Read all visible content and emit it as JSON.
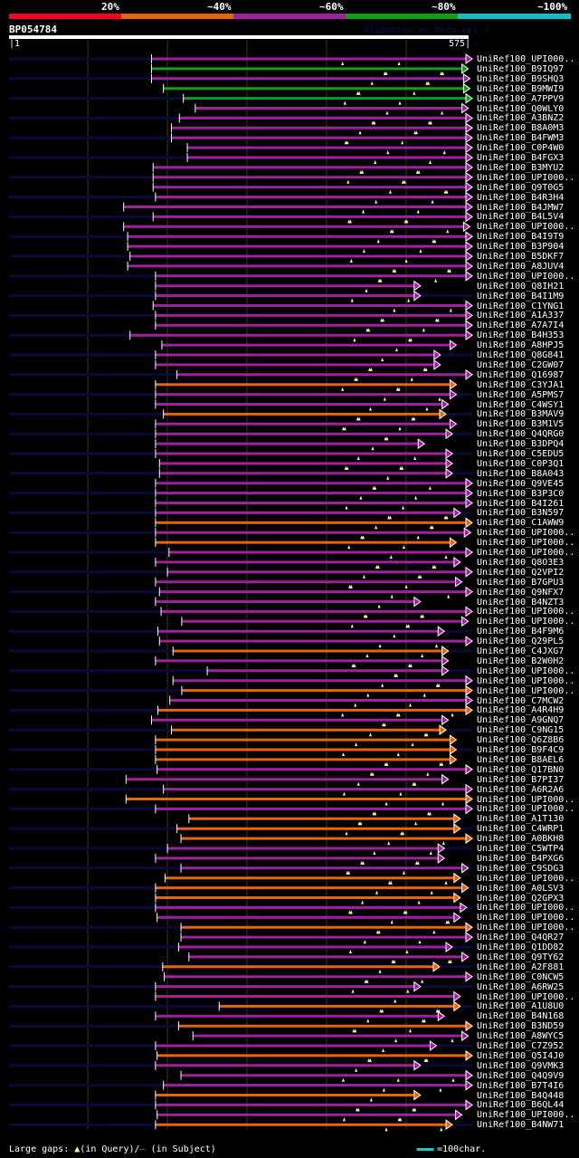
{
  "legend": {
    "labels": [
      "20%",
      "~40%",
      "~60%",
      "~80%",
      "~100%"
    ],
    "colors": [
      "#ff0022",
      "#e8640a",
      "#a020a0",
      "#10a010",
      "#10c0c8"
    ]
  },
  "query": {
    "name": "BP054784",
    "start": "1",
    "end": "575",
    "length": 575
  },
  "version": "AlignView.pm Beta rel.7",
  "colors": {
    "purple": "#a020a0",
    "green": "#10a010",
    "orange": "#e8640a",
    "navy": "#0a0a3a",
    "gap": "#ffffa0",
    "grid": "#3a3a10"
  },
  "hits": [
    {
      "label": "UniRef100_UPI000..",
      "c": "purple",
      "s": 180,
      "e": 575,
      "lead": 1
    },
    {
      "label": "UniRef100_B9IQ97",
      "c": "green",
      "s": 180,
      "e": 570,
      "lead": 0
    },
    {
      "label": "UniRef100_B9SHQ3",
      "c": "purple",
      "s": 180,
      "e": 572,
      "lead": 1
    },
    {
      "label": "UniRef100_B9MWI9",
      "c": "green",
      "s": 195,
      "e": 572,
      "lead": 0
    },
    {
      "label": "UniRef100_A7PPV9",
      "c": "green",
      "s": 220,
      "e": 575,
      "lead": 1
    },
    {
      "label": "UniRef100_Q0WLY0",
      "c": "purple",
      "s": 235,
      "e": 570,
      "lead": 0
    },
    {
      "label": "UniRef100_A3BNZ2",
      "c": "purple",
      "s": 215,
      "e": 575,
      "lead": 1
    },
    {
      "label": "UniRef100_B8A0M3",
      "c": "purple",
      "s": 205,
      "e": 575,
      "lead": 0
    },
    {
      "label": "UniRef100_B4FWM3",
      "c": "purple",
      "s": 205,
      "e": 575,
      "lead": 1
    },
    {
      "label": "UniRef100_C0P4W0",
      "c": "purple",
      "s": 225,
      "e": 575,
      "lead": 0
    },
    {
      "label": "UniRef100_B4FGX3",
      "c": "purple",
      "s": 225,
      "e": 575,
      "lead": 1
    },
    {
      "label": "UniRef100_B3MYU2",
      "c": "purple",
      "s": 182,
      "e": 575,
      "lead": 0
    },
    {
      "label": "UniRef100_UPI000..",
      "c": "purple",
      "s": 182,
      "e": 575,
      "lead": 1
    },
    {
      "label": "UniRef100_Q9T0G5",
      "c": "purple",
      "s": 182,
      "e": 575,
      "lead": 0
    },
    {
      "label": "UniRef100_B4R3H4",
      "c": "purple",
      "s": 185,
      "e": 575,
      "lead": 1
    },
    {
      "label": "UniRef100_B4JMW7",
      "c": "purple",
      "s": 145,
      "e": 575,
      "lead": 0
    },
    {
      "label": "UniRef100_B4L5V4",
      "c": "purple",
      "s": 182,
      "e": 575,
      "lead": 1
    },
    {
      "label": "UniRef100_UPI000..",
      "c": "purple",
      "s": 145,
      "e": 572,
      "lead": 0
    },
    {
      "label": "UniRef100_B4I9T9",
      "c": "purple",
      "s": 150,
      "e": 575,
      "lead": 1
    },
    {
      "label": "UniRef100_B3P904",
      "c": "purple",
      "s": 150,
      "e": 575,
      "lead": 0
    },
    {
      "label": "UniRef100_B5DKF7",
      "c": "purple",
      "s": 153,
      "e": 575,
      "lead": 1
    },
    {
      "label": "UniRef100_A8JUV4",
      "c": "purple",
      "s": 150,
      "e": 575,
      "lead": 0
    },
    {
      "label": "UniRef100_UPI000..",
      "c": "purple",
      "s": 185,
      "e": 575,
      "lead": 1
    },
    {
      "label": "UniRef100_Q8IH21",
      "c": "purple",
      "s": 185,
      "e": 510,
      "lead": 0
    },
    {
      "label": "UniRef100_B4I1M9",
      "c": "purple",
      "s": 185,
      "e": 510,
      "lead": 1
    },
    {
      "label": "UniRef100_C1YNG1",
      "c": "purple",
      "s": 182,
      "e": 575,
      "lead": 0
    },
    {
      "label": "UniRef100_A1A337",
      "c": "purple",
      "s": 185,
      "e": 575,
      "lead": 1
    },
    {
      "label": "UniRef100_A7A7I4",
      "c": "purple",
      "s": 185,
      "e": 575,
      "lead": 0
    },
    {
      "label": "UniRef100_B4H353",
      "c": "purple",
      "s": 153,
      "e": 575,
      "lead": 1
    },
    {
      "label": "UniRef100_A8HPJ5",
      "c": "purple",
      "s": 193,
      "e": 555,
      "lead": 0
    },
    {
      "label": "UniRef100_Q8G841",
      "c": "purple",
      "s": 185,
      "e": 535,
      "lead": 1
    },
    {
      "label": "UniRef100_C2GW07",
      "c": "purple",
      "s": 185,
      "e": 535,
      "lead": 0
    },
    {
      "label": "UniRef100_Q16987",
      "c": "purple",
      "s": 212,
      "e": 575,
      "lead": 1
    },
    {
      "label": "UniRef100_C3YJA1",
      "c": "orange",
      "s": 185,
      "e": 555,
      "lead": 0
    },
    {
      "label": "UniRef100_A5PMS7",
      "c": "purple",
      "s": 185,
      "e": 555,
      "lead": 1
    },
    {
      "label": "UniRef100_C4WSY1",
      "c": "purple",
      "s": 185,
      "e": 545,
      "lead": 0
    },
    {
      "label": "UniRef100_B3MAV9",
      "c": "orange",
      "s": 195,
      "e": 542,
      "lead": 1
    },
    {
      "label": "UniRef100_B3M1V5",
      "c": "purple",
      "s": 185,
      "e": 555,
      "lead": 0
    },
    {
      "label": "UniRef100_Q4QRG0",
      "c": "purple",
      "s": 185,
      "e": 550,
      "lead": 1
    },
    {
      "label": "UniRef100_B3DPQ4",
      "c": "purple",
      "s": 185,
      "e": 515,
      "lead": 0
    },
    {
      "label": "UniRef100_C5EDU5",
      "c": "purple",
      "s": 185,
      "e": 550,
      "lead": 1
    },
    {
      "label": "UniRef100_C0P3Q1",
      "c": "purple",
      "s": 190,
      "e": 550,
      "lead": 0
    },
    {
      "label": "UniRef100_B8A043",
      "c": "purple",
      "s": 190,
      "e": 550,
      "lead": 1
    },
    {
      "label": "UniRef100_Q9VE45",
      "c": "purple",
      "s": 185,
      "e": 575,
      "lead": 0
    },
    {
      "label": "UniRef100_B3P3C0",
      "c": "purple",
      "s": 185,
      "e": 575,
      "lead": 1
    },
    {
      "label": "UniRef100_B4I261",
      "c": "purple",
      "s": 185,
      "e": 575,
      "lead": 0
    },
    {
      "label": "UniRef100_B3N597",
      "c": "purple",
      "s": 185,
      "e": 560,
      "lead": 1
    },
    {
      "label": "UniRef100_C1AWW9",
      "c": "orange",
      "s": 185,
      "e": 575,
      "lead": 0
    },
    {
      "label": "UniRef100_UPI000..",
      "c": "purple",
      "s": 185,
      "e": 573,
      "lead": 1
    },
    {
      "label": "UniRef100_UPI000..",
      "c": "orange",
      "s": 185,
      "e": 555,
      "lead": 0
    },
    {
      "label": "UniRef100_UPI000..",
      "c": "purple",
      "s": 202,
      "e": 575,
      "lead": 1
    },
    {
      "label": "UniRef100_Q8O3E3",
      "c": "purple",
      "s": 185,
      "e": 560,
      "lead": 0
    },
    {
      "label": "UniRef100_Q2VPI2",
      "c": "purple",
      "s": 200,
      "e": 575,
      "lead": 1
    },
    {
      "label": "UniRef100_B7GPU3",
      "c": "purple",
      "s": 185,
      "e": 562,
      "lead": 0
    },
    {
      "label": "UniRef100_Q9NFX7",
      "c": "purple",
      "s": 190,
      "e": 575,
      "lead": 1
    },
    {
      "label": "UniRef100_B4NZT3",
      "c": "purple",
      "s": 185,
      "e": 510,
      "lead": 0
    },
    {
      "label": "UniRef100_UPI000..",
      "c": "purple",
      "s": 192,
      "e": 575,
      "lead": 1
    },
    {
      "label": "UniRef100_UPI000..",
      "c": "purple",
      "s": 218,
      "e": 570,
      "lead": 0
    },
    {
      "label": "UniRef100_B4F9M6",
      "c": "purple",
      "s": 188,
      "e": 540,
      "lead": 1
    },
    {
      "label": "UniRef100_Q29PL5",
      "c": "purple",
      "s": 190,
      "e": 575,
      "lead": 0
    },
    {
      "label": "UniRef100_C4JXG7",
      "c": "orange",
      "s": 207,
      "e": 545,
      "lead": 1
    },
    {
      "label": "UniRef100_B2W0H2",
      "c": "purple",
      "s": 185,
      "e": 545,
      "lead": 0
    },
    {
      "label": "UniRef100_UPI000..",
      "c": "purple",
      "s": 250,
      "e": 545,
      "lead": 1
    },
    {
      "label": "UniRef100_UPI000..",
      "c": "purple",
      "s": 207,
      "e": 575,
      "lead": 0
    },
    {
      "label": "UniRef100_UPI000..",
      "c": "orange",
      "s": 218,
      "e": 575,
      "lead": 1
    },
    {
      "label": "UniRef100_C7MCW2",
      "c": "purple",
      "s": 203,
      "e": 575,
      "lead": 0
    },
    {
      "label": "UniRef100_A4R4H9",
      "c": "orange",
      "s": 188,
      "e": 575,
      "lead": 1
    },
    {
      "label": "UniRef100_A9GNQ7",
      "c": "purple",
      "s": 180,
      "e": 545,
      "lead": 0
    },
    {
      "label": "UniRef100_C9NG15",
      "c": "orange",
      "s": 205,
      "e": 542,
      "lead": 1
    },
    {
      "label": "UniRef100_Q6Z8B6",
      "c": "orange",
      "s": 185,
      "e": 555,
      "lead": 0
    },
    {
      "label": "UniRef100_B9F4C9",
      "c": "orange",
      "s": 185,
      "e": 555,
      "lead": 1
    },
    {
      "label": "UniRef100_B8AEL6",
      "c": "orange",
      "s": 185,
      "e": 555,
      "lead": 0
    },
    {
      "label": "UniRef100_Q17BN0",
      "c": "purple",
      "s": 187,
      "e": 575,
      "lead": 1
    },
    {
      "label": "UniRef100_B7PI37",
      "c": "purple",
      "s": 148,
      "e": 545,
      "lead": 0
    },
    {
      "label": "UniRef100_A6R2A6",
      "c": "purple",
      "s": 195,
      "e": 575,
      "lead": 1
    },
    {
      "label": "UniRef100_UPI000..",
      "c": "orange",
      "s": 148,
      "e": 575,
      "lead": 0
    },
    {
      "label": "UniRef100_UPI000..",
      "c": "purple",
      "s": 185,
      "e": 575,
      "lead": 1
    },
    {
      "label": "UniRef100_A1T130",
      "c": "orange",
      "s": 227,
      "e": 560,
      "lead": 0
    },
    {
      "label": "UniRef100_C4WRP1",
      "c": "orange",
      "s": 212,
      "e": 560,
      "lead": 1
    },
    {
      "label": "UniRef100_A0BKH8",
      "c": "orange",
      "s": 217,
      "e": 575,
      "lead": 0
    },
    {
      "label": "UniRef100_C5WTP4",
      "c": "purple",
      "s": 200,
      "e": 540,
      "lead": 1
    },
    {
      "label": "UniRef100_B4PXG6",
      "c": "purple",
      "s": 185,
      "e": 540,
      "lead": 0
    },
    {
      "label": "UniRef100_C9SDG3",
      "c": "purple",
      "s": 217,
      "e": 570,
      "lead": 1
    },
    {
      "label": "UniRef100_UPI000..",
      "c": "orange",
      "s": 197,
      "e": 560,
      "lead": 0
    },
    {
      "label": "UniRef100_A0LSV3",
      "c": "orange",
      "s": 185,
      "e": 570,
      "lead": 1
    },
    {
      "label": "UniRef100_Q2GPX3",
      "c": "orange",
      "s": 185,
      "e": 560,
      "lead": 0
    },
    {
      "label": "UniRef100_UPI000..",
      "c": "purple",
      "s": 185,
      "e": 568,
      "lead": 1
    },
    {
      "label": "UniRef100_UPI000..",
      "c": "purple",
      "s": 187,
      "e": 560,
      "lead": 0
    },
    {
      "label": "UniRef100_UPI000..",
      "c": "orange",
      "s": 217,
      "e": 575,
      "lead": 1
    },
    {
      "label": "UniRef100_Q4QR27",
      "c": "purple",
      "s": 217,
      "e": 575,
      "lead": 0
    },
    {
      "label": "UniRef100_Q1DD82",
      "c": "purple",
      "s": 214,
      "e": 550,
      "lead": 1
    },
    {
      "label": "UniRef100_Q9TY62",
      "c": "purple",
      "s": 227,
      "e": 570,
      "lead": 0
    },
    {
      "label": "UniRef100_A2F881",
      "c": "orange",
      "s": 194,
      "e": 534,
      "lead": 1
    },
    {
      "label": "UniRef100_C0NCW5",
      "c": "purple",
      "s": 196,
      "e": 575,
      "lead": 0
    },
    {
      "label": "UniRef100_A6RW25",
      "c": "purple",
      "s": 185,
      "e": 510,
      "lead": 1
    },
    {
      "label": "UniRef100_UPI000..",
      "c": "purple",
      "s": 185,
      "e": 560,
      "lead": 0
    },
    {
      "label": "UniRef100_A1U8U0",
      "c": "orange",
      "s": 265,
      "e": 560,
      "lead": 1
    },
    {
      "label": "UniRef100_B4N168",
      "c": "purple",
      "s": 185,
      "e": 540,
      "lead": 0
    },
    {
      "label": "UniRef100_B3ND59",
      "c": "orange",
      "s": 214,
      "e": 575,
      "lead": 1
    },
    {
      "label": "UniRef100_A8WYC5",
      "c": "purple",
      "s": 232,
      "e": 570,
      "lead": 0
    },
    {
      "label": "UniRef100_C7Z952",
      "c": "purple",
      "s": 185,
      "e": 530,
      "lead": 1
    },
    {
      "label": "UniRef100_Q5I4J0",
      "c": "orange",
      "s": 187,
      "e": 575,
      "lead": 0
    },
    {
      "label": "UniRef100_Q9VMK3",
      "c": "purple",
      "s": 185,
      "e": 510,
      "lead": 1
    },
    {
      "label": "UniRef100_Q4Q9V9",
      "c": "purple",
      "s": 217,
      "e": 575,
      "lead": 0
    },
    {
      "label": "UniRef100_B7T4I6",
      "c": "purple",
      "s": 195,
      "e": 575,
      "lead": 1
    },
    {
      "label": "UniRef100_B4Q448",
      "c": "orange",
      "s": 185,
      "e": 510,
      "lead": 0
    },
    {
      "label": "UniRef100_B6QL44",
      "c": "purple",
      "s": 185,
      "e": 575,
      "lead": 1
    },
    {
      "label": "UniRef100_UPI000..",
      "c": "purple",
      "s": 187,
      "e": 562,
      "lead": 0
    },
    {
      "label": "UniRef100_B4NW71",
      "c": "orange",
      "s": 185,
      "e": 550,
      "lead": 1
    }
  ],
  "footer": {
    "gaps_prefix": "Large gaps:",
    "query_gap_symbol": "▲",
    "query_gap_text": "(in Query)/",
    "subject_gap_symbol": "–",
    "subject_gap_text": " (in Subject)",
    "scale_text": "=100char."
  }
}
